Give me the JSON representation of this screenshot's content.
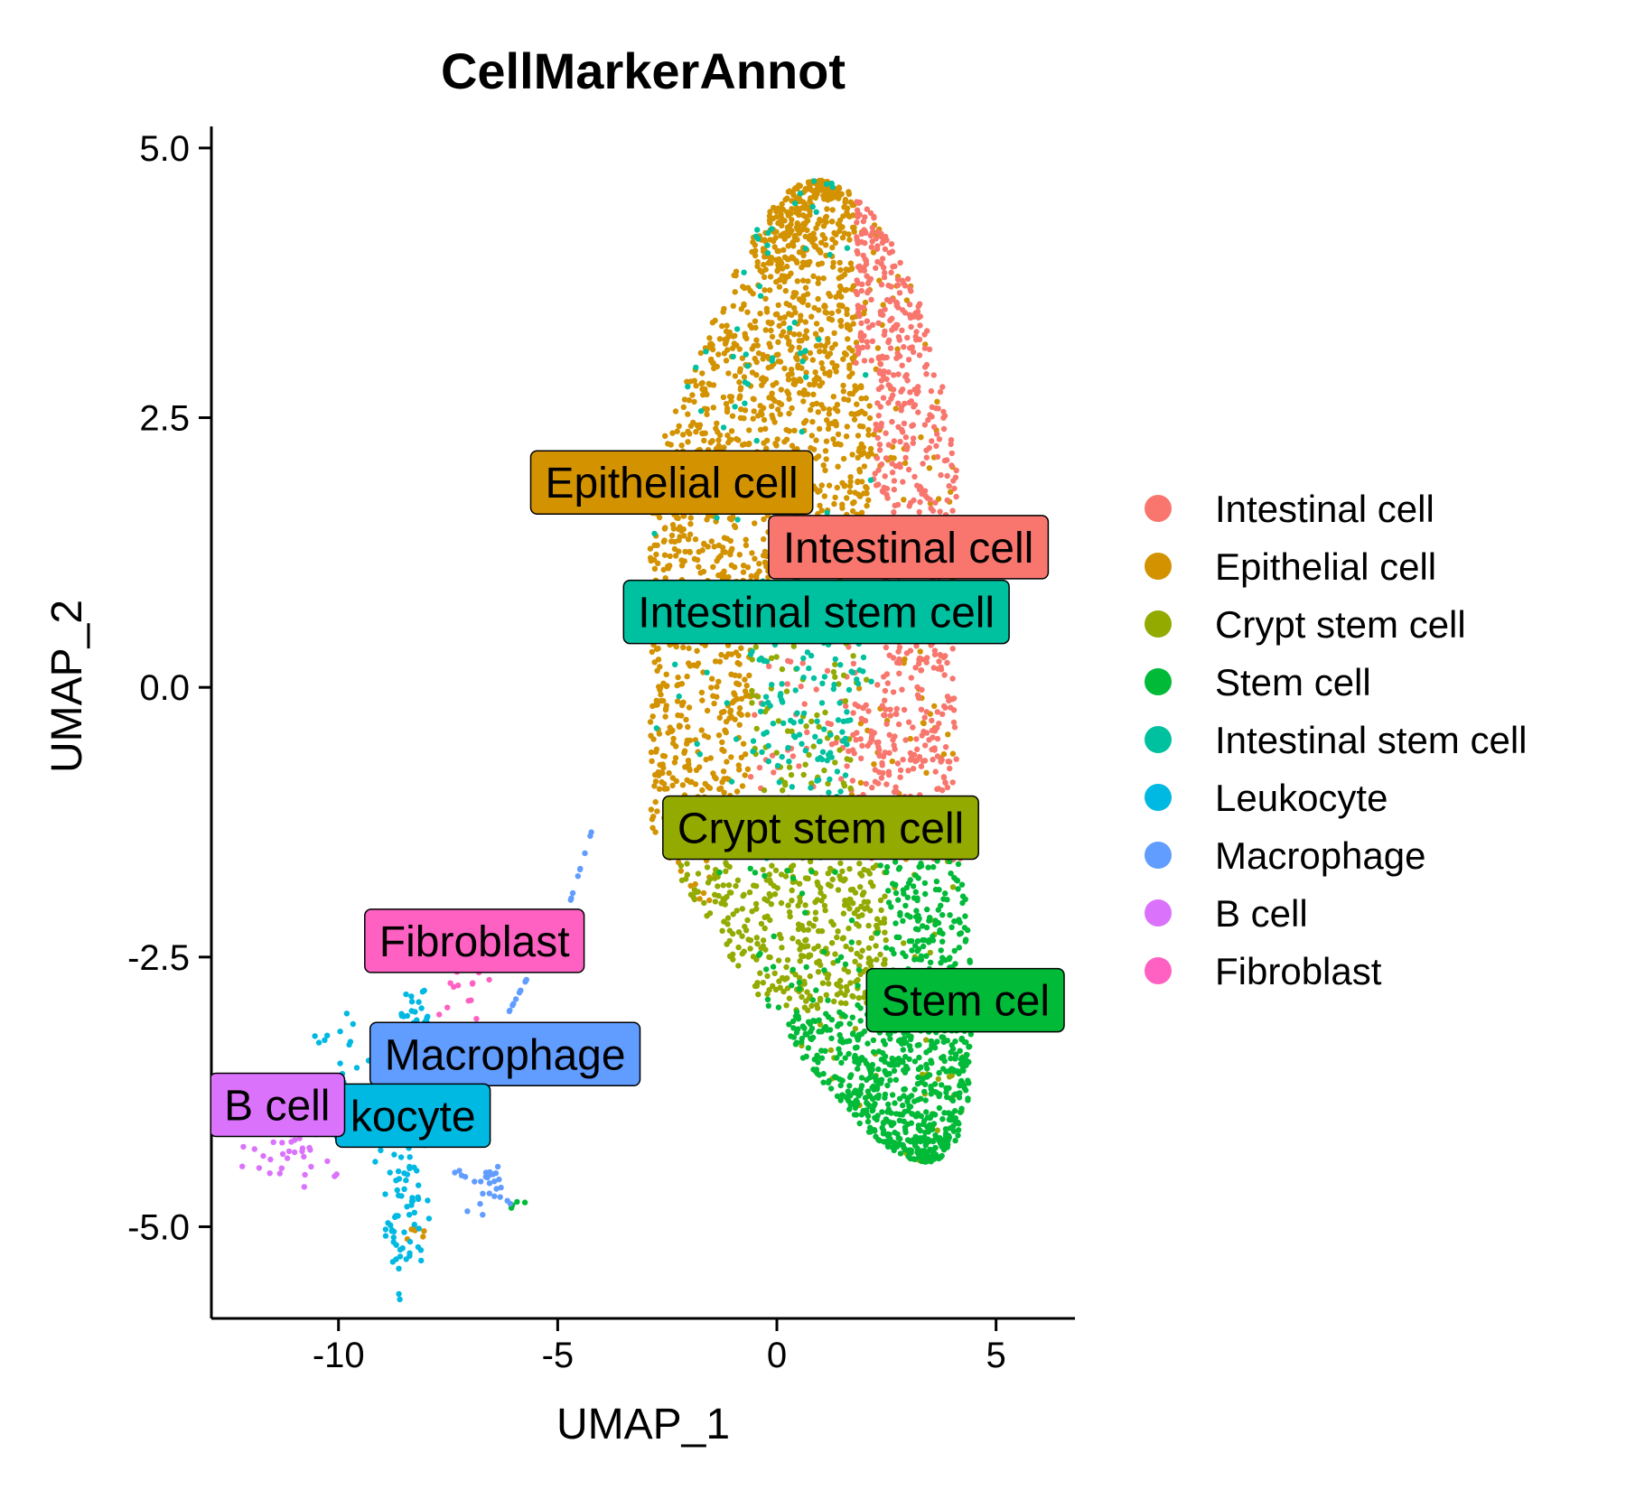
{
  "chart_data": {
    "type": "scatter",
    "title": "CellMarkerAnnot",
    "xlabel": "UMAP_1",
    "ylabel": "UMAP_2",
    "xlim": [
      -12.9,
      6.8
    ],
    "ylim": [
      -5.85,
      5.2
    ],
    "xticks": [
      -10,
      -5,
      0,
      5
    ],
    "xtick_labels": [
      "-10",
      "-5",
      "0",
      "5"
    ],
    "yticks": [
      5.0,
      2.5,
      0.0,
      -2.5,
      -5.0
    ],
    "ytick_labels": [
      "5.0",
      "2.5",
      "0.0",
      "-2.5",
      "-5.0"
    ],
    "grid": false,
    "legend_position": "right",
    "series": [
      {
        "name": "Intestinal cell",
        "color": "#F8766D"
      },
      {
        "name": "Epithelial cell",
        "color": "#D39200"
      },
      {
        "name": "Crypt stem cell",
        "color": "#93AA00"
      },
      {
        "name": "Stem cell",
        "color": "#00BA38"
      },
      {
        "name": "Intestinal stem cell",
        "color": "#00C19F"
      },
      {
        "name": "Leukocyte",
        "color": "#00B9E3"
      },
      {
        "name": "Macrophage",
        "color": "#619CFF"
      },
      {
        "name": "B cell",
        "color": "#DB72FB"
      },
      {
        "name": "Fibroblast",
        "color": "#FF61C3"
      }
    ],
    "cluster_labels": [
      {
        "text": "Epithelial cell",
        "series": "Epithelial cell",
        "x": -2.4,
        "y": 1.9
      },
      {
        "text": "Intestinal cell",
        "series": "Intestinal cell",
        "x": 3.0,
        "y": 1.3
      },
      {
        "text": "Intestinal stem cell",
        "series": "Intestinal stem cell",
        "x": 0.9,
        "y": 0.7
      },
      {
        "text": "Crypt stem cell",
        "series": "Crypt stem cell",
        "x": 1.0,
        "y": -1.3
      },
      {
        "text": "Fibroblast",
        "series": "Fibroblast",
        "x": -6.9,
        "y": -2.35
      },
      {
        "text": "Stem cel",
        "series": "Stem cell",
        "x": 4.3,
        "y": -2.9
      },
      {
        "text": "Macrophage",
        "series": "Macrophage",
        "x": -6.2,
        "y": -3.4
      },
      {
        "text": "kocyte",
        "series": "Leukocyte",
        "x": -8.3,
        "y": -3.97
      },
      {
        "text": "B cell",
        "series": "B cell",
        "x": -11.4,
        "y": -3.87
      }
    ]
  }
}
